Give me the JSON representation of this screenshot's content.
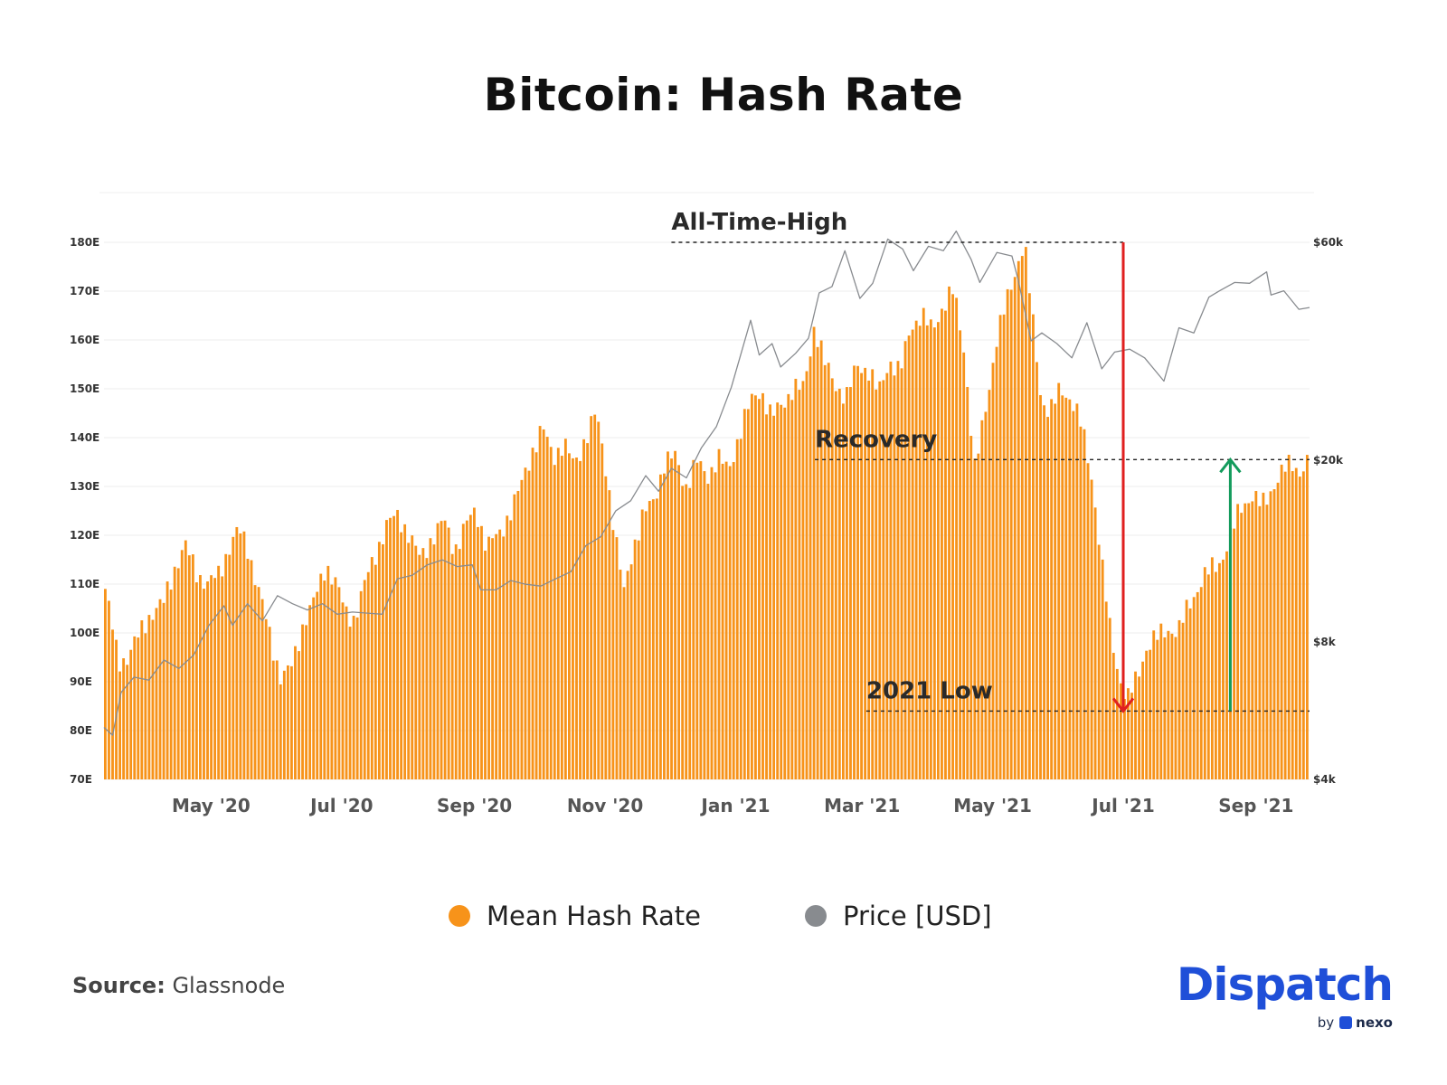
{
  "title": "Bitcoin: Hash Rate",
  "legend": [
    {
      "label": "Mean Hash Rate",
      "color": "#f7931a"
    },
    {
      "label": "Price [USD]",
      "color": "#888b8f"
    }
  ],
  "source": {
    "prefix": "Source:",
    "name": "Glassnode"
  },
  "brand": {
    "name": "Dispatch",
    "by": "by",
    "partner": "nexo"
  },
  "chart_data": {
    "type": "bar",
    "start_date": "2020-03-12",
    "end_date": "2021-09-26",
    "y_left": {
      "min": 70,
      "max": 180,
      "unit": "E",
      "ticks": [
        "70E",
        "80E",
        "90E",
        "100E",
        "110E",
        "120E",
        "130E",
        "140E",
        "150E",
        "160E",
        "170E",
        "180E"
      ]
    },
    "y_right": {
      "scale": "log",
      "min": 4000,
      "max": 60000,
      "ticks": [
        {
          "value": 60000,
          "label": "$60k"
        },
        {
          "value": 20000,
          "label": "$20k"
        },
        {
          "value": 8000,
          "label": "$8k"
        },
        {
          "value": 4000,
          "label": "$4k"
        }
      ]
    },
    "x_ticks": [
      {
        "date": "2020-05-01",
        "label": "May '20"
      },
      {
        "date": "2020-07-01",
        "label": "Jul '20"
      },
      {
        "date": "2020-09-01",
        "label": "Sep '20"
      },
      {
        "date": "2020-11-01",
        "label": "Nov '20"
      },
      {
        "date": "2021-01-01",
        "label": "Jan '21"
      },
      {
        "date": "2021-03-01",
        "label": "Mar '21"
      },
      {
        "date": "2021-05-01",
        "label": "May '21"
      },
      {
        "date": "2021-07-01",
        "label": "Jul '21"
      },
      {
        "date": "2021-09-01",
        "label": "Sep '21"
      }
    ],
    "series": [
      {
        "name": "Mean Hash Rate",
        "color": "#f7931a",
        "type": "bar",
        "points": [
          [
            "2020-03-12",
            111
          ],
          [
            "2020-03-15",
            104
          ],
          [
            "2020-03-19",
            94
          ],
          [
            "2020-03-23",
            95
          ],
          [
            "2020-03-28",
            99
          ],
          [
            "2020-04-03",
            104
          ],
          [
            "2020-04-09",
            106
          ],
          [
            "2020-04-14",
            113
          ],
          [
            "2020-04-19",
            118
          ],
          [
            "2020-04-25",
            112
          ],
          [
            "2020-04-30",
            110
          ],
          [
            "2020-05-05",
            112
          ],
          [
            "2020-05-10",
            118
          ],
          [
            "2020-05-14",
            121
          ],
          [
            "2020-05-18",
            118
          ],
          [
            "2020-05-24",
            108
          ],
          [
            "2020-05-30",
            97
          ],
          [
            "2020-06-03",
            91
          ],
          [
            "2020-06-08",
            93
          ],
          [
            "2020-06-14",
            103
          ],
          [
            "2020-06-19",
            107
          ],
          [
            "2020-06-24",
            114
          ],
          [
            "2020-06-29",
            110
          ],
          [
            "2020-07-03",
            104
          ],
          [
            "2020-07-07",
            103
          ],
          [
            "2020-07-12",
            110
          ],
          [
            "2020-07-17",
            116
          ],
          [
            "2020-07-22",
            122
          ],
          [
            "2020-07-27",
            124
          ],
          [
            "2020-08-01",
            121
          ],
          [
            "2020-08-07",
            115
          ],
          [
            "2020-08-13",
            120
          ],
          [
            "2020-08-18",
            123
          ],
          [
            "2020-08-23",
            117
          ],
          [
            "2020-08-28",
            122
          ],
          [
            "2020-09-02",
            125
          ],
          [
            "2020-09-07",
            118
          ],
          [
            "2020-09-13",
            120
          ],
          [
            "2020-09-18",
            125
          ],
          [
            "2020-09-23",
            130
          ],
          [
            "2020-09-28",
            137
          ],
          [
            "2020-10-03",
            142
          ],
          [
            "2020-10-08",
            136
          ],
          [
            "2020-10-13",
            139
          ],
          [
            "2020-10-18",
            134
          ],
          [
            "2020-10-23",
            140
          ],
          [
            "2020-10-28",
            145
          ],
          [
            "2020-11-02",
            133
          ],
          [
            "2020-11-06",
            120
          ],
          [
            "2020-11-10",
            108
          ],
          [
            "2020-11-14",
            117
          ],
          [
            "2020-11-19",
            124
          ],
          [
            "2020-11-24",
            127
          ],
          [
            "2020-11-29",
            135
          ],
          [
            "2020-12-04",
            136
          ],
          [
            "2020-12-09",
            130
          ],
          [
            "2020-12-14",
            135
          ],
          [
            "2020-12-19",
            132
          ],
          [
            "2020-12-24",
            136
          ],
          [
            "2020-12-29",
            133
          ],
          [
            "2021-01-03",
            141
          ],
          [
            "2021-01-08",
            147
          ],
          [
            "2021-01-13",
            150
          ],
          [
            "2021-01-18",
            144
          ],
          [
            "2021-01-23",
            147
          ],
          [
            "2021-01-28",
            150
          ],
          [
            "2021-02-02",
            150
          ],
          [
            "2021-02-07",
            163
          ],
          [
            "2021-02-12",
            155
          ],
          [
            "2021-02-17",
            151
          ],
          [
            "2021-02-22",
            148
          ],
          [
            "2021-02-27",
            155
          ],
          [
            "2021-03-04",
            154
          ],
          [
            "2021-03-09",
            149
          ],
          [
            "2021-03-14",
            156
          ],
          [
            "2021-03-19",
            153
          ],
          [
            "2021-03-24",
            163
          ],
          [
            "2021-03-29",
            165
          ],
          [
            "2021-04-03",
            162
          ],
          [
            "2021-04-08",
            167
          ],
          [
            "2021-04-13",
            170
          ],
          [
            "2021-04-18",
            158
          ],
          [
            "2021-04-23",
            133
          ],
          [
            "2021-04-28",
            146
          ],
          [
            "2021-05-03",
            160
          ],
          [
            "2021-05-08",
            168
          ],
          [
            "2021-05-13",
            176
          ],
          [
            "2021-05-16",
            180
          ],
          [
            "2021-05-20",
            164
          ],
          [
            "2021-05-24",
            148
          ],
          [
            "2021-05-28",
            145
          ],
          [
            "2021-06-02",
            150
          ],
          [
            "2021-06-07",
            148
          ],
          [
            "2021-06-12",
            142
          ],
          [
            "2021-06-17",
            131
          ],
          [
            "2021-06-21",
            115
          ],
          [
            "2021-06-25",
            101
          ],
          [
            "2021-06-29",
            92
          ],
          [
            "2021-07-03",
            86
          ],
          [
            "2021-07-07",
            90
          ],
          [
            "2021-07-12",
            97
          ],
          [
            "2021-07-17",
            99
          ],
          [
            "2021-07-22",
            101
          ],
          [
            "2021-07-27",
            100
          ],
          [
            "2021-08-01",
            106
          ],
          [
            "2021-08-06",
            110
          ],
          [
            "2021-08-11",
            113
          ],
          [
            "2021-08-16",
            115
          ],
          [
            "2021-08-20",
            119
          ],
          [
            "2021-08-25",
            126
          ],
          [
            "2021-08-30",
            128
          ],
          [
            "2021-09-04",
            126
          ],
          [
            "2021-09-09",
            130
          ],
          [
            "2021-09-14",
            133
          ],
          [
            "2021-09-18",
            135
          ],
          [
            "2021-09-22",
            133
          ],
          [
            "2021-09-26",
            135
          ]
        ]
      },
      {
        "name": "Price [USD]",
        "color": "#888b8f",
        "type": "line",
        "points": [
          [
            "2020-03-12",
            5200
          ],
          [
            "2020-03-16",
            5000
          ],
          [
            "2020-03-20",
            6200
          ],
          [
            "2020-03-26",
            6700
          ],
          [
            "2020-04-02",
            6600
          ],
          [
            "2020-04-09",
            7300
          ],
          [
            "2020-04-16",
            7000
          ],
          [
            "2020-04-23",
            7500
          ],
          [
            "2020-04-30",
            8700
          ],
          [
            "2020-05-07",
            9600
          ],
          [
            "2020-05-11",
            8700
          ],
          [
            "2020-05-18",
            9700
          ],
          [
            "2020-05-25",
            8900
          ],
          [
            "2020-06-01",
            10100
          ],
          [
            "2020-06-08",
            9700
          ],
          [
            "2020-06-15",
            9400
          ],
          [
            "2020-06-22",
            9700
          ],
          [
            "2020-06-29",
            9200
          ],
          [
            "2020-07-06",
            9300
          ],
          [
            "2020-07-13",
            9250
          ],
          [
            "2020-07-20",
            9200
          ],
          [
            "2020-07-27",
            11000
          ],
          [
            "2020-08-03",
            11200
          ],
          [
            "2020-08-10",
            11800
          ],
          [
            "2020-08-17",
            12100
          ],
          [
            "2020-08-24",
            11700
          ],
          [
            "2020-08-31",
            11800
          ],
          [
            "2020-09-04",
            10400
          ],
          [
            "2020-09-11",
            10400
          ],
          [
            "2020-09-18",
            10900
          ],
          [
            "2020-09-25",
            10700
          ],
          [
            "2020-10-02",
            10600
          ],
          [
            "2020-10-09",
            11000
          ],
          [
            "2020-10-16",
            11400
          ],
          [
            "2020-10-23",
            13000
          ],
          [
            "2020-10-30",
            13600
          ],
          [
            "2020-11-06",
            15500
          ],
          [
            "2020-11-13",
            16300
          ],
          [
            "2020-11-20",
            18500
          ],
          [
            "2020-11-26",
            17100
          ],
          [
            "2020-12-02",
            19200
          ],
          [
            "2020-12-09",
            18300
          ],
          [
            "2020-12-16",
            21300
          ],
          [
            "2020-12-23",
            23700
          ],
          [
            "2020-12-30",
            28900
          ],
          [
            "2021-01-08",
            40500
          ],
          [
            "2021-01-12",
            34000
          ],
          [
            "2021-01-18",
            36000
          ],
          [
            "2021-01-22",
            32000
          ],
          [
            "2021-01-29",
            34300
          ],
          [
            "2021-02-04",
            37000
          ],
          [
            "2021-02-09",
            46500
          ],
          [
            "2021-02-15",
            48000
          ],
          [
            "2021-02-21",
            57500
          ],
          [
            "2021-02-28",
            45200
          ],
          [
            "2021-03-06",
            48800
          ],
          [
            "2021-03-13",
            61000
          ],
          [
            "2021-03-20",
            58000
          ],
          [
            "2021-03-25",
            52000
          ],
          [
            "2021-04-01",
            58800
          ],
          [
            "2021-04-08",
            57500
          ],
          [
            "2021-04-14",
            63500
          ],
          [
            "2021-04-21",
            55000
          ],
          [
            "2021-04-25",
            49000
          ],
          [
            "2021-05-03",
            57000
          ],
          [
            "2021-05-10",
            56000
          ],
          [
            "2021-05-13",
            49500
          ],
          [
            "2021-05-19",
            36500
          ],
          [
            "2021-05-24",
            38000
          ],
          [
            "2021-05-31",
            36000
          ],
          [
            "2021-06-07",
            33500
          ],
          [
            "2021-06-14",
            40000
          ],
          [
            "2021-06-21",
            31700
          ],
          [
            "2021-06-27",
            34500
          ],
          [
            "2021-07-04",
            35000
          ],
          [
            "2021-07-11",
            33500
          ],
          [
            "2021-07-20",
            29800
          ],
          [
            "2021-07-27",
            39000
          ],
          [
            "2021-08-03",
            38000
          ],
          [
            "2021-08-10",
            45500
          ],
          [
            "2021-08-15",
            47000
          ],
          [
            "2021-08-22",
            49000
          ],
          [
            "2021-08-29",
            48800
          ],
          [
            "2021-09-06",
            51700
          ],
          [
            "2021-09-08",
            46000
          ],
          [
            "2021-09-14",
            47000
          ],
          [
            "2021-09-21",
            42800
          ],
          [
            "2021-09-26",
            43200
          ]
        ]
      }
    ],
    "reference_lines": [
      {
        "label": "All-Time-High",
        "value": 180,
        "from": "2020-12-02",
        "to": "2021-07-01"
      },
      {
        "label": "Recovery",
        "value": 135.5,
        "from": "2021-02-07",
        "to": "2021-09-26"
      },
      {
        "label": "2021 Low",
        "value": 84,
        "from": "2021-03-03",
        "to": "2021-09-26"
      }
    ],
    "arrows": [
      {
        "color": "#e02020",
        "date": "2021-07-01",
        "from": 180,
        "to": 84,
        "direction": "down"
      },
      {
        "color": "#139b5c",
        "date": "2021-08-20",
        "from": 84,
        "to": 135.5,
        "direction": "up"
      }
    ],
    "grid": true,
    "legend_position": "bottom-center"
  }
}
